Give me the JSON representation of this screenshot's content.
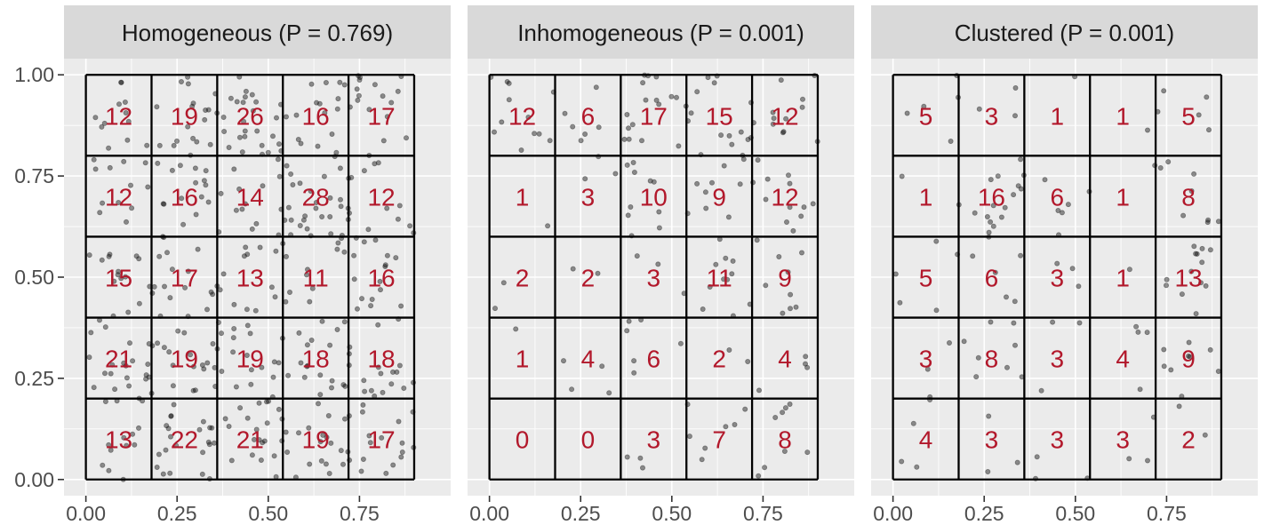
{
  "chart_data": {
    "type": "scatter",
    "x_ticks": [
      "0.00",
      "0.25",
      "0.50",
      "0.75"
    ],
    "y_ticks": [
      "0.00",
      "0.25",
      "0.50",
      "0.75",
      "1.00"
    ],
    "xlim": [
      -0.06,
      1.0
    ],
    "ylim": [
      -0.04,
      1.04
    ],
    "quadrat_breaks_x": [
      0.0,
      0.18,
      0.36,
      0.54,
      0.72,
      0.9
    ],
    "quadrat_breaks_y": [
      0.0,
      0.2,
      0.4,
      0.6,
      0.8,
      1.0
    ],
    "grid": true,
    "panels": [
      {
        "title": "Homogeneous (P = 0.769)",
        "counts": [
          [
            12,
            19,
            26,
            16,
            17
          ],
          [
            12,
            16,
            14,
            28,
            12
          ],
          [
            15,
            17,
            13,
            11,
            16
          ],
          [
            21,
            19,
            19,
            18,
            18
          ],
          [
            13,
            22,
            21,
            19,
            17
          ]
        ]
      },
      {
        "title": "Inhomogeneous (P = 0.001)",
        "counts": [
          [
            12,
            6,
            17,
            15,
            12
          ],
          [
            1,
            3,
            10,
            9,
            12
          ],
          [
            2,
            2,
            3,
            11,
            9
          ],
          [
            1,
            4,
            6,
            2,
            4
          ],
          [
            0,
            0,
            3,
            7,
            8
          ]
        ]
      },
      {
        "title": "Clustered (P = 0.001)",
        "counts": [
          [
            5,
            3,
            1,
            1,
            5
          ],
          [
            1,
            16,
            6,
            1,
            8
          ],
          [
            5,
            6,
            3,
            1,
            13
          ],
          [
            3,
            8,
            3,
            4,
            9
          ],
          [
            4,
            3,
            3,
            3,
            2
          ]
        ]
      }
    ]
  }
}
